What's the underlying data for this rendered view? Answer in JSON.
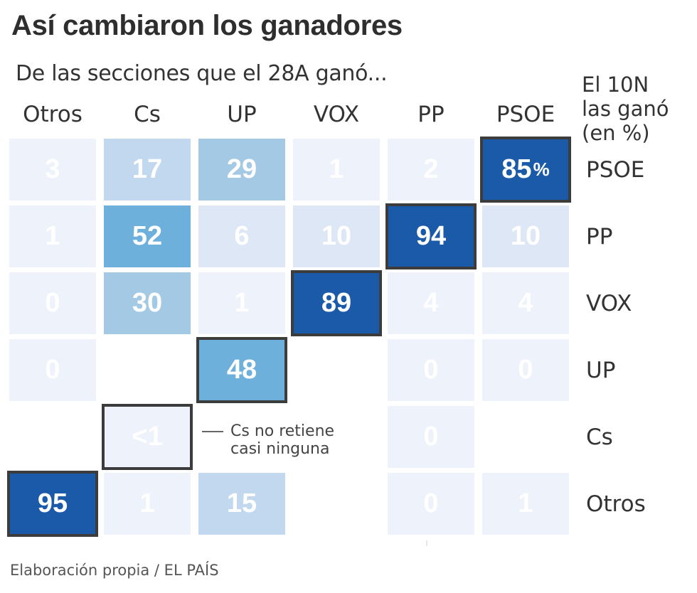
{
  "title": "Así cambiaron los ganadores",
  "subtitle": "De las secciones que el 28A ganó...",
  "row_header_title": [
    "El 10N",
    "las ganó",
    "(en %)"
  ],
  "footer": "Elaboración propia / EL PAÍS",
  "note": {
    "lines": [
      "Cs no retiene",
      "casi ninguna"
    ]
  },
  "colors": {
    "scale": [
      "#eef2fb",
      "#dde7f6",
      "#c2d8ee",
      "#a4c9e5",
      "#6eb0dc",
      "#1a5aa8"
    ],
    "highlight_border": "#3c3c3c",
    "text": "#333333"
  },
  "chart_data": {
    "type": "heatmap",
    "title": "Así cambiaron los ganadores",
    "xlabel": "De las secciones que el 28A ganó...",
    "ylabel": "El 10N las ganó (en %)",
    "columns": [
      "Otros",
      "Cs",
      "UP",
      "VOX",
      "PP",
      "PSOE"
    ],
    "rows": [
      "PSOE",
      "PP",
      "VOX",
      "UP",
      "Cs",
      "Otros"
    ],
    "unit": "%",
    "values": [
      [
        3,
        17,
        29,
        1,
        2,
        85
      ],
      [
        1,
        52,
        6,
        10,
        94,
        10
      ],
      [
        0,
        30,
        1,
        89,
        4,
        4
      ],
      [
        0,
        null,
        48,
        null,
        0,
        0
      ],
      [
        null,
        "<1",
        null,
        null,
        0,
        null
      ],
      [
        95,
        1,
        15,
        null,
        0,
        1
      ]
    ],
    "highlighted": [
      [
        0,
        5
      ],
      [
        1,
        4
      ],
      [
        2,
        3
      ],
      [
        3,
        2
      ],
      [
        4,
        1
      ],
      [
        5,
        0
      ]
    ]
  }
}
